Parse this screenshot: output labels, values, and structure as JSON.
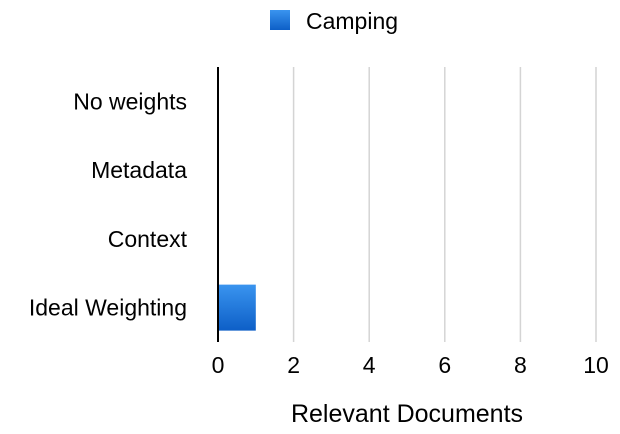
{
  "chart_data": {
    "type": "bar",
    "orientation": "horizontal",
    "categories": [
      "No weights",
      "Metadata",
      "Context",
      "Ideal Weighting"
    ],
    "series": [
      {
        "name": "Camping",
        "values": [
          0,
          0,
          0,
          1
        ],
        "color": "#1a73d9"
      }
    ],
    "xlabel": "Relevant Documents",
    "ylabel": "",
    "xlim": [
      0,
      10
    ],
    "xticks": [
      0,
      2,
      4,
      6,
      8,
      10
    ],
    "grid": true,
    "legend_position": "top-center"
  }
}
